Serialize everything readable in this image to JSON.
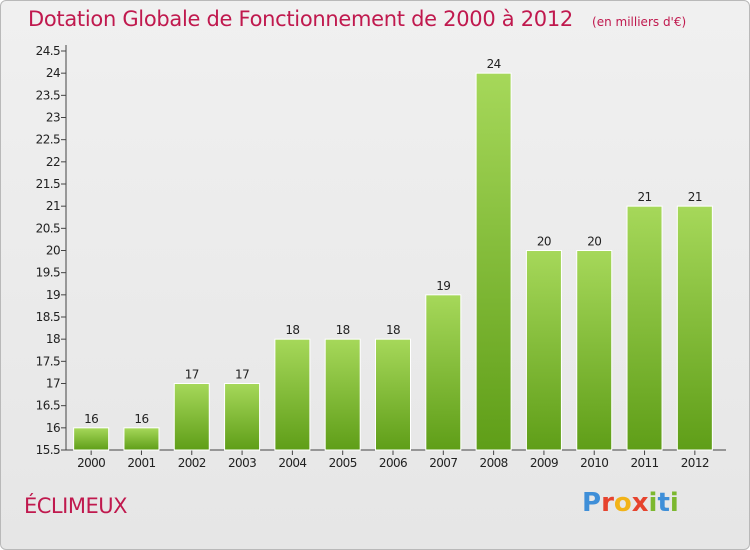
{
  "title": "Dotation Globale de Fonctionnement de 2000 à 2012",
  "unit_note": "(en milliers d'€)",
  "commune": "ÉCLIMEUX",
  "logo": {
    "letters": [
      "P",
      "r",
      "o",
      "x",
      "i",
      "t",
      "i"
    ],
    "colors": [
      "#3f8fd8",
      "#e6432e",
      "#f2b318",
      "#e6432e",
      "#7cb82f",
      "#3f8fd8",
      "#7cb82f"
    ]
  },
  "colors": {
    "title": "#c0194e",
    "bar_top": "#a6d85a",
    "bar_bottom": "#5f9e18"
  },
  "chart_data": {
    "type": "bar",
    "title": "Dotation Globale de Fonctionnement de 2000 à 2012",
    "subtitle": "(en milliers d'€)",
    "categories": [
      "2000",
      "2001",
      "2002",
      "2003",
      "2004",
      "2005",
      "2006",
      "2007",
      "2008",
      "2009",
      "2010",
      "2011",
      "2012"
    ],
    "values": [
      16,
      16,
      17,
      17,
      18,
      18,
      18,
      19,
      24,
      20,
      20,
      21,
      21
    ],
    "value_labels": [
      "16",
      "16",
      "17",
      "17",
      "18",
      "18",
      "18",
      "19",
      "24",
      "20",
      "20",
      "21",
      "21"
    ],
    "yticks": [
      "15.5",
      "16",
      "16.5",
      "17",
      "17.5",
      "18",
      "18.5",
      "19",
      "19.5",
      "20",
      "20.5",
      "21",
      "21.5",
      "22",
      "22.5",
      "23",
      "23.5",
      "24",
      "24.5"
    ],
    "ylim": [
      15.5,
      24.5
    ],
    "grid": false,
    "xlabel": "",
    "ylabel": ""
  }
}
